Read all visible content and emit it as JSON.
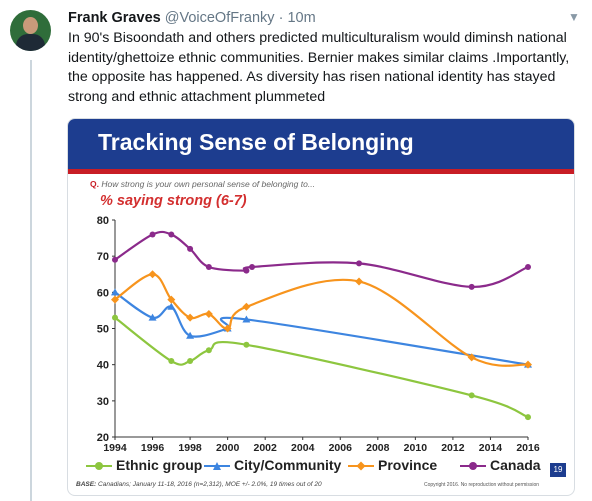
{
  "tweet": {
    "name": "Frank Graves",
    "handle": "@VoiceOfFranky",
    "separator": "·",
    "time": "10m",
    "text": "In  90's Bisoondath and others predicted multiculturalism would diminsh national identity/ghettoize ethnic communities. Bernier makes similar claims .Importantly, the opposite has happened. As diversity has risen national identity has stayed strong and ethnic attachment plummeted",
    "icons": {
      "avatar": "profile-photo",
      "menu": "chevron-down-icon"
    }
  },
  "card": {
    "banner_title": "Tracking Sense of Belonging",
    "question_marker": "Q.",
    "question": "How strong is your own personal sense of belonging to...",
    "subhead": "% saying strong (6-7)",
    "page_number": "19",
    "base_label": "BASE:",
    "base_text": "Canadians; January 11-18, 2016 (n=2,312), MOE +/- 2.0%, 19 times out of 20",
    "copyright": "Copyright 2016. No reproduction without permission",
    "colors": {
      "banner": "#1d3d8f",
      "stripe": "#c81d25",
      "subhead": "#d32f2f"
    }
  },
  "chart_data": {
    "type": "line",
    "title": "Tracking Sense of Belonging",
    "subtitle": "% saying strong (6-7)",
    "xlabel": "",
    "ylabel": "",
    "xlim": [
      1994,
      2016
    ],
    "ylim": [
      20,
      80
    ],
    "xticks": [
      1994,
      1996,
      1998,
      2000,
      2002,
      2004,
      2006,
      2008,
      2010,
      2012,
      2014,
      2016
    ],
    "yticks": [
      20,
      30,
      40,
      50,
      60,
      70,
      80
    ],
    "grid": false,
    "legend_position": "bottom",
    "series": [
      {
        "name": "Ethnic group",
        "color": "#8dc63f",
        "marker": "circle",
        "x": [
          1994,
          1997,
          1998,
          1999,
          2001,
          2013,
          2016
        ],
        "y": [
          53,
          41,
          41,
          44,
          45.5,
          31.5,
          25.5
        ]
      },
      {
        "name": "City/Community",
        "color": "#3d85e0",
        "marker": "triangle",
        "x": [
          1994,
          1996,
          1997,
          1998,
          2000,
          2001,
          2016
        ],
        "y": [
          60,
          53,
          56,
          48,
          50,
          52.5,
          40
        ]
      },
      {
        "name": "Province",
        "color": "#f7941d",
        "marker": "diamond",
        "x": [
          1994,
          1996,
          1997,
          1998,
          1999,
          2000,
          2001,
          2007,
          2013,
          2016
        ],
        "y": [
          58,
          65,
          58,
          53,
          54,
          50,
          56,
          63,
          42,
          40
        ]
      },
      {
        "name": "Canada",
        "color": "#8b2a8b",
        "marker": "circle",
        "x": [
          1994,
          1996,
          1997,
          1998,
          1999,
          2001,
          2001.3,
          2007,
          2013,
          2016
        ],
        "y": [
          69,
          76,
          76,
          72,
          67,
          66,
          67,
          68,
          61.5,
          67
        ]
      }
    ]
  }
}
